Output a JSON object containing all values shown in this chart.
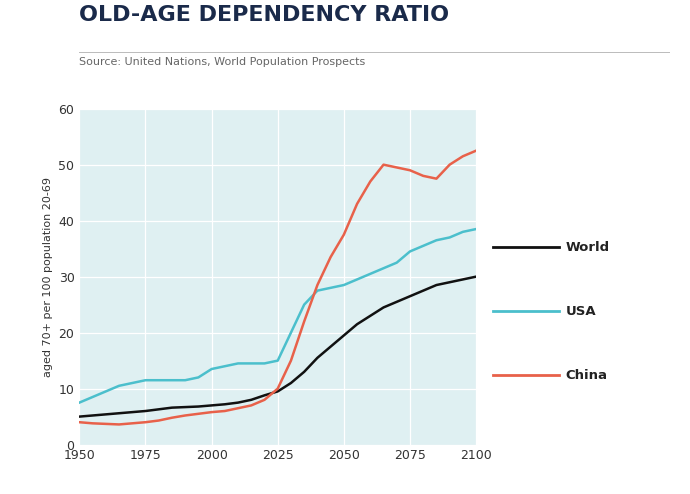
{
  "title": "OLD-AGE DEPENDENCY RATIO",
  "subtitle": "Source: United Nations, World Population Prospects",
  "ylabel": "aged 70+ per 100 population 20-69",
  "xlim": [
    1950,
    2100
  ],
  "ylim": [
    0,
    60
  ],
  "xticks": [
    1950,
    1975,
    2000,
    2025,
    2050,
    2075,
    2100
  ],
  "yticks": [
    0,
    10,
    20,
    30,
    40,
    50,
    60
  ],
  "background_color": "#dff0f2",
  "title_color": "#1a2a4a",
  "grid_color": "#ffffff",
  "world_x": [
    1950,
    1955,
    1960,
    1965,
    1970,
    1975,
    1980,
    1985,
    1990,
    1995,
    2000,
    2005,
    2010,
    2015,
    2020,
    2025,
    2030,
    2035,
    2040,
    2045,
    2050,
    2055,
    2060,
    2065,
    2070,
    2075,
    2080,
    2085,
    2090,
    2095,
    2100
  ],
  "world_y": [
    5.0,
    5.2,
    5.4,
    5.6,
    5.8,
    6.0,
    6.3,
    6.6,
    6.7,
    6.8,
    7.0,
    7.2,
    7.5,
    8.0,
    8.8,
    9.5,
    11.0,
    13.0,
    15.5,
    17.5,
    19.5,
    21.5,
    23.0,
    24.5,
    25.5,
    26.5,
    27.5,
    28.5,
    29.0,
    29.5,
    30.0
  ],
  "usa_x": [
    1950,
    1955,
    1960,
    1965,
    1970,
    1975,
    1980,
    1985,
    1990,
    1995,
    2000,
    2005,
    2010,
    2015,
    2020,
    2025,
    2030,
    2035,
    2040,
    2045,
    2050,
    2055,
    2060,
    2065,
    2070,
    2075,
    2080,
    2085,
    2090,
    2095,
    2100
  ],
  "usa_y": [
    7.5,
    8.5,
    9.5,
    10.5,
    11.0,
    11.5,
    11.5,
    11.5,
    11.5,
    12.0,
    13.5,
    14.0,
    14.5,
    14.5,
    14.5,
    15.0,
    20.0,
    25.0,
    27.5,
    28.0,
    28.5,
    29.5,
    30.5,
    31.5,
    32.5,
    34.5,
    35.5,
    36.5,
    37.0,
    38.0,
    38.5
  ],
  "china_x": [
    1950,
    1955,
    1960,
    1965,
    1970,
    1975,
    1980,
    1985,
    1990,
    1995,
    2000,
    2005,
    2010,
    2015,
    2020,
    2025,
    2030,
    2035,
    2040,
    2045,
    2050,
    2055,
    2060,
    2065,
    2070,
    2075,
    2080,
    2085,
    2090,
    2095,
    2100
  ],
  "china_y": [
    4.0,
    3.8,
    3.7,
    3.6,
    3.8,
    4.0,
    4.3,
    4.8,
    5.2,
    5.5,
    5.8,
    6.0,
    6.5,
    7.0,
    8.0,
    10.0,
    15.0,
    22.0,
    28.5,
    33.5,
    37.5,
    43.0,
    47.0,
    50.0,
    49.5,
    49.0,
    48.0,
    47.5,
    50.0,
    51.5,
    52.5
  ],
  "world_color": "#111111",
  "usa_color": "#4bbfcc",
  "china_color": "#e8614a",
  "line_width": 1.8,
  "legend_labels": [
    "World",
    "USA",
    "China"
  ],
  "legend_colors": [
    "#111111",
    "#4bbfcc",
    "#e8614a"
  ],
  "title_fontsize": 16,
  "subtitle_fontsize": 8,
  "tick_fontsize": 9,
  "ylabel_fontsize": 8
}
